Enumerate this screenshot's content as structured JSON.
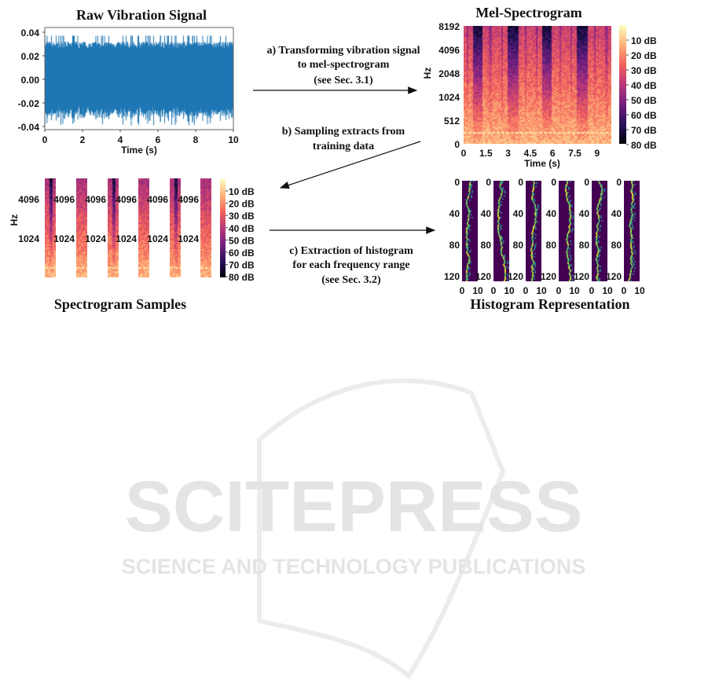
{
  "raw_signal": {
    "title": "Raw Vibration Signal",
    "xlabel": "Time (s)",
    "xticks": [
      "0",
      "2",
      "4",
      "6",
      "8",
      "10"
    ],
    "yticks": [
      "0.04",
      "0.02",
      "0.00",
      "-0.02",
      "-0.04"
    ],
    "color": "#1f77b4"
  },
  "mel": {
    "title": "Mel-Spectrogram",
    "ylabel": "Hz",
    "xlabel": "Time (s)",
    "yticks": [
      "8192",
      "4096",
      "2048",
      "1024",
      "512",
      "0"
    ],
    "xticks": [
      "0",
      "1.5",
      "3",
      "4.5",
      "6",
      "7.5",
      "9"
    ],
    "colorbar": [
      "10 dB",
      "20 dB",
      "30 dB",
      "40 dB",
      "50 dB",
      "60 dB",
      "70 dB",
      "80 dB"
    ],
    "colormap": "magma"
  },
  "samples": {
    "title": "Spectrogram Samples",
    "ylabel": "Hz",
    "yticks": [
      "4096",
      "1024"
    ],
    "colorbar": [
      "10 dB",
      "20 dB",
      "30 dB",
      "40 dB",
      "50 dB",
      "60 dB",
      "70 dB",
      "80 dB"
    ]
  },
  "histogram": {
    "title": "Histogram Representation",
    "yticks": [
      "0",
      "40",
      "80",
      "120"
    ],
    "xticks": [
      "0",
      "10"
    ],
    "colormap": "viridis"
  },
  "steps": {
    "a": [
      "a) Transforming vibration signal",
      "to mel-spectrogram",
      "(see Sec. 3.1)"
    ],
    "b": [
      "b) Sampling extracts from",
      "training data"
    ],
    "c": [
      "c) Extraction of histogram",
      "for each frequency range",
      "(see Sec. 3.2)"
    ]
  },
  "watermark": {
    "brand": "SCITEPRESS",
    "tagline": "SCIENCE AND TECHNOLOGY PUBLICATIONS"
  }
}
